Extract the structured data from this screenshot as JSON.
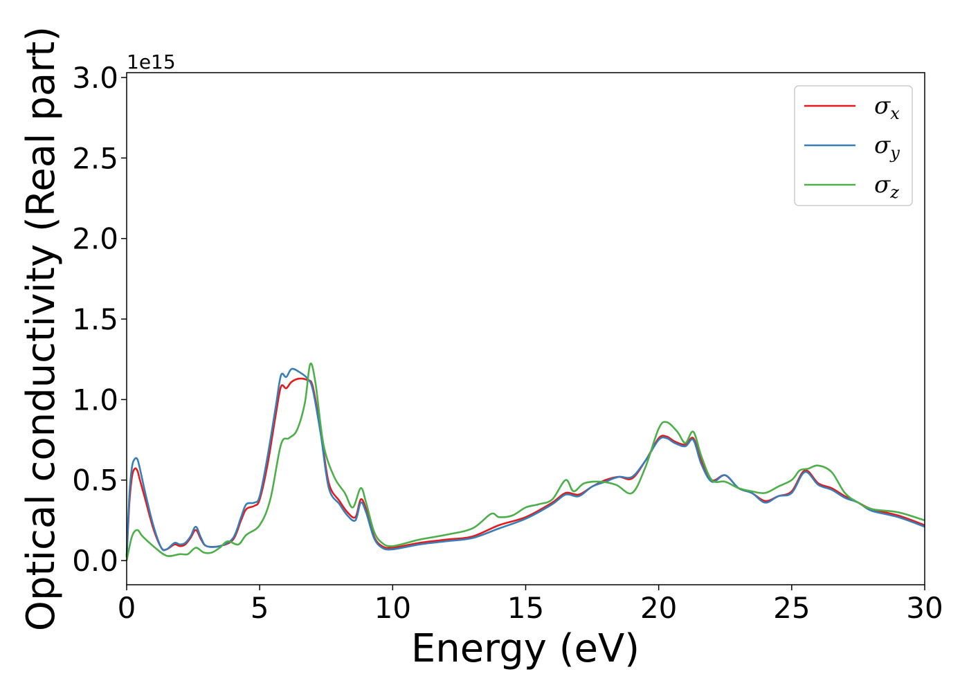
{
  "chart_data": {
    "type": "line",
    "xlabel": "Energy (eV)",
    "ylabel": "Optical conductivity (Real part)",
    "y_offset_label": "1e15",
    "xlim": [
      0,
      30
    ],
    "ylim": [
      -0.15,
      3.03
    ],
    "x_ticks": [
      0,
      5,
      10,
      15,
      20,
      25,
      30
    ],
    "x_tick_labels": [
      "0",
      "5",
      "10",
      "15",
      "20",
      "25",
      "30"
    ],
    "y_ticks": [
      0.0,
      0.5,
      1.0,
      1.5,
      2.0,
      2.5,
      3.0
    ],
    "y_tick_labels": [
      "0.0",
      "0.5",
      "1.0",
      "1.5",
      "2.0",
      "2.5",
      "3.0"
    ],
    "grid": false,
    "legend_position": "top-right",
    "series": [
      {
        "name": "σx",
        "symbol": "σ",
        "subscript": "x",
        "color": "#e41a1c",
        "x": [
          0,
          0.1,
          0.2,
          0.3,
          0.4,
          0.5,
          0.7,
          1.0,
          1.3,
          1.5,
          1.8,
          2.0,
          2.2,
          2.4,
          2.6,
          2.8,
          3.0,
          3.5,
          4.0,
          4.3,
          4.5,
          4.8,
          5.0,
          5.3,
          5.6,
          5.8,
          6.0,
          6.2,
          6.5,
          6.8,
          7.0,
          7.3,
          7.6,
          8.0,
          8.3,
          8.6,
          8.8,
          9.0,
          9.3,
          9.6,
          10.0,
          11.0,
          12.0,
          13.0,
          14.0,
          15.0,
          16.0,
          16.5,
          17.0,
          17.5,
          18.0,
          18.5,
          19.0,
          19.5,
          20.0,
          20.3,
          20.6,
          21.0,
          21.3,
          21.6,
          22.0,
          22.5,
          23.0,
          23.5,
          24.0,
          24.5,
          25.0,
          25.5,
          26.0,
          26.5,
          27.0,
          27.5,
          28.0,
          29.0,
          30.0
        ],
        "values": [
          0.02,
          0.35,
          0.52,
          0.57,
          0.56,
          0.5,
          0.38,
          0.2,
          0.08,
          0.07,
          0.1,
          0.09,
          0.1,
          0.14,
          0.19,
          0.13,
          0.09,
          0.09,
          0.13,
          0.25,
          0.32,
          0.34,
          0.38,
          0.6,
          0.9,
          1.08,
          1.07,
          1.11,
          1.13,
          1.12,
          1.08,
          0.8,
          0.48,
          0.37,
          0.3,
          0.27,
          0.38,
          0.32,
          0.15,
          0.09,
          0.08,
          0.11,
          0.13,
          0.15,
          0.22,
          0.27,
          0.36,
          0.42,
          0.41,
          0.46,
          0.5,
          0.52,
          0.51,
          0.62,
          0.76,
          0.77,
          0.74,
          0.72,
          0.76,
          0.62,
          0.5,
          0.53,
          0.45,
          0.42,
          0.37,
          0.4,
          0.43,
          0.56,
          0.48,
          0.45,
          0.4,
          0.36,
          0.32,
          0.28,
          0.22
        ]
      },
      {
        "name": "σy",
        "symbol": "σ",
        "subscript": "y",
        "color": "#377eb8",
        "x": [
          0,
          0.1,
          0.2,
          0.3,
          0.4,
          0.5,
          0.7,
          1.0,
          1.3,
          1.5,
          1.8,
          2.0,
          2.2,
          2.4,
          2.6,
          2.8,
          3.0,
          3.5,
          4.0,
          4.3,
          4.5,
          4.8,
          5.0,
          5.3,
          5.6,
          5.8,
          6.0,
          6.2,
          6.5,
          6.8,
          7.0,
          7.3,
          7.6,
          8.0,
          8.3,
          8.6,
          8.8,
          9.0,
          9.3,
          9.6,
          10.0,
          11.0,
          12.0,
          13.0,
          14.0,
          15.0,
          16.0,
          16.5,
          17.0,
          17.5,
          18.0,
          18.5,
          19.0,
          19.5,
          20.0,
          20.3,
          20.6,
          21.0,
          21.3,
          21.6,
          22.0,
          22.5,
          23.0,
          23.5,
          24.0,
          24.5,
          25.0,
          25.5,
          26.0,
          26.5,
          27.0,
          27.5,
          28.0,
          29.0,
          30.0
        ],
        "values": [
          0.03,
          0.4,
          0.58,
          0.63,
          0.63,
          0.57,
          0.42,
          0.22,
          0.08,
          0.07,
          0.11,
          0.1,
          0.11,
          0.15,
          0.21,
          0.14,
          0.09,
          0.09,
          0.14,
          0.27,
          0.35,
          0.36,
          0.4,
          0.65,
          0.95,
          1.15,
          1.14,
          1.19,
          1.17,
          1.13,
          1.06,
          0.78,
          0.45,
          0.35,
          0.28,
          0.25,
          0.36,
          0.3,
          0.14,
          0.08,
          0.07,
          0.1,
          0.12,
          0.14,
          0.2,
          0.26,
          0.35,
          0.41,
          0.4,
          0.46,
          0.49,
          0.52,
          0.52,
          0.62,
          0.75,
          0.76,
          0.73,
          0.71,
          0.75,
          0.6,
          0.49,
          0.53,
          0.45,
          0.42,
          0.36,
          0.4,
          0.42,
          0.55,
          0.47,
          0.44,
          0.39,
          0.36,
          0.31,
          0.27,
          0.21
        ]
      },
      {
        "name": "σz",
        "symbol": "σ",
        "subscript": "z",
        "color": "#4daf4a",
        "x": [
          0,
          0.2,
          0.4,
          0.6,
          1.0,
          1.5,
          2.0,
          2.3,
          2.6,
          2.9,
          3.2,
          3.5,
          3.8,
          4.2,
          4.5,
          5.0,
          5.4,
          5.8,
          6.1,
          6.4,
          6.7,
          6.9,
          7.1,
          7.4,
          7.8,
          8.2,
          8.5,
          8.8,
          9.0,
          9.3,
          9.6,
          10.0,
          11.0,
          12.0,
          13.0,
          13.7,
          14.0,
          14.5,
          15.0,
          15.5,
          16.0,
          16.5,
          16.8,
          17.2,
          17.8,
          18.4,
          19.0,
          19.5,
          20.0,
          20.3,
          20.7,
          21.0,
          21.3,
          21.6,
          22.0,
          22.5,
          23.0,
          23.5,
          24.0,
          24.5,
          25.0,
          25.3,
          25.6,
          26.0,
          26.5,
          27.0,
          27.5,
          28.0,
          29.0,
          30.0
        ],
        "values": [
          0.0,
          0.15,
          0.19,
          0.15,
          0.09,
          0.03,
          0.04,
          0.04,
          0.08,
          0.05,
          0.05,
          0.08,
          0.12,
          0.1,
          0.16,
          0.22,
          0.38,
          0.72,
          0.76,
          0.81,
          0.98,
          1.22,
          1.1,
          0.72,
          0.52,
          0.42,
          0.33,
          0.45,
          0.36,
          0.18,
          0.11,
          0.09,
          0.13,
          0.16,
          0.2,
          0.29,
          0.27,
          0.28,
          0.33,
          0.35,
          0.38,
          0.5,
          0.43,
          0.48,
          0.49,
          0.47,
          0.42,
          0.58,
          0.82,
          0.86,
          0.8,
          0.73,
          0.8,
          0.65,
          0.5,
          0.49,
          0.45,
          0.43,
          0.42,
          0.46,
          0.5,
          0.56,
          0.57,
          0.59,
          0.55,
          0.42,
          0.36,
          0.32,
          0.3,
          0.25
        ]
      }
    ]
  }
}
